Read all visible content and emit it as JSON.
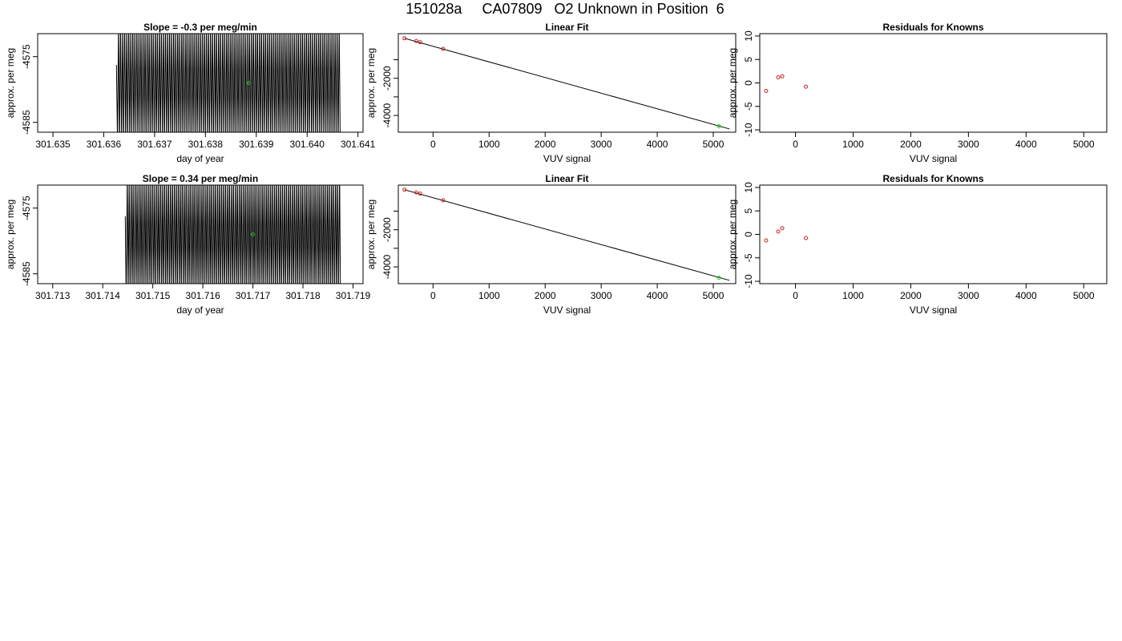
{
  "page_title": "151028a     CA07809   O2 Unknown in Position  6",
  "colors": {
    "knowns": "#cc2222",
    "unknown": "#22cc22",
    "line": "#000000"
  },
  "chart_data": [
    {
      "id": "timeseries-1",
      "type": "line",
      "title": "Slope =  -0.3  per meg/min",
      "xlabel": "day of year",
      "ylabel": "approx. per meg",
      "xlim": [
        301.6347,
        301.6411
      ],
      "ylim": [
        -4586.5,
        -4571.5
      ],
      "xticks": [
        "301.635",
        "301.636",
        "301.637",
        "301.638",
        "301.639",
        "301.640",
        "301.641"
      ],
      "xtick_values": [
        301.635,
        301.636,
        301.637,
        301.638,
        301.639,
        301.64,
        301.641
      ],
      "yticks": [
        "-4575",
        "-4585"
      ],
      "ytick_values": [
        -4575,
        -4585
      ],
      "series": [
        {
          "x_start": 301.63625,
          "x_end": 301.64065,
          "count": 220,
          "center": -4579.1,
          "amplitude": 9.5
        }
      ],
      "unknown_point": {
        "x": 301.63885,
        "y": -4579.0
      }
    },
    {
      "id": "linear-fit-1",
      "type": "scatter",
      "title": "Linear Fit",
      "xlabel": "VUV signal",
      "ylabel": "approx. per meg",
      "xlim": [
        -620,
        5400
      ],
      "ylim": [
        -4900,
        400
      ],
      "xticks": [
        "0",
        "1000",
        "2000",
        "3000",
        "4000",
        "5000"
      ],
      "xtick_values": [
        0,
        1000,
        2000,
        3000,
        4000,
        5000
      ],
      "yticks": [
        "-2000",
        "-4000"
      ],
      "yticks_shown_values": [
        -2000,
        -4000
      ],
      "yminor_ticks": [
        -1000,
        -3000
      ],
      "fit_line": {
        "x": [
          -510,
          5290
        ],
        "y": [
          150,
          -4725
        ]
      },
      "knowns": [
        {
          "x": -510,
          "y": 150
        },
        {
          "x": -300,
          "y": 0
        },
        {
          "x": -230,
          "y": -60
        },
        {
          "x": 180,
          "y": -420
        }
      ],
      "unknown": {
        "x": 5100,
        "y": -4580
      }
    },
    {
      "id": "residuals-1",
      "type": "scatter",
      "title": "Residuals for Knowns",
      "xlabel": "VUV signal",
      "ylabel": "approx. per meg",
      "xlim": [
        -620,
        5400
      ],
      "ylim": [
        -10.5,
        10.5
      ],
      "xticks": [
        "0",
        "1000",
        "2000",
        "3000",
        "4000",
        "5000"
      ],
      "xtick_values": [
        0,
        1000,
        2000,
        3000,
        4000,
        5000
      ],
      "yticks": [
        "10",
        "5",
        "0",
        "-5",
        "-10"
      ],
      "ytick_values": [
        10,
        5,
        0,
        -5,
        -10
      ],
      "points": [
        {
          "x": -510,
          "y": -1.7
        },
        {
          "x": -300,
          "y": 1.2
        },
        {
          "x": -230,
          "y": 1.4
        },
        {
          "x": 180,
          "y": -0.8
        }
      ]
    },
    {
      "id": "timeseries-2",
      "type": "line",
      "title": "Slope =  0.34  per meg/min",
      "xlabel": "day of year",
      "ylabel": "approx. per meg",
      "xlim": [
        301.7127,
        301.7192
      ],
      "ylim": [
        -4586.5,
        -4571.5
      ],
      "xticks": [
        "301.713",
        "301.714",
        "301.715",
        "301.716",
        "301.717",
        "301.718",
        "301.719"
      ],
      "xtick_values": [
        301.713,
        301.714,
        301.715,
        301.716,
        301.717,
        301.718,
        301.719
      ],
      "yticks": [
        "-4575",
        "-4585"
      ],
      "ytick_values": [
        -4575,
        -4585
      ],
      "series": [
        {
          "x_start": 301.71445,
          "x_end": 301.71875,
          "count": 220,
          "center": -4579.2,
          "amplitude": 9.5
        }
      ],
      "unknown_point": {
        "x": 301.717,
        "y": -4579.0
      }
    },
    {
      "id": "linear-fit-2",
      "type": "scatter",
      "title": "Linear Fit",
      "xlabel": "VUV signal",
      "ylabel": "approx. per meg",
      "xlim": [
        -620,
        5400
      ],
      "ylim": [
        -4900,
        400
      ],
      "xticks": [
        "0",
        "1000",
        "2000",
        "3000",
        "4000",
        "5000"
      ],
      "xtick_values": [
        0,
        1000,
        2000,
        3000,
        4000,
        5000
      ],
      "yticks": [
        "-2000",
        "-4000"
      ],
      "yticks_shown_values": [
        -2000,
        -4000
      ],
      "yminor_ticks": [
        -1000,
        -3000
      ],
      "fit_line": {
        "x": [
          -510,
          5290
        ],
        "y": [
          150,
          -4725
        ]
      },
      "knowns": [
        {
          "x": -510,
          "y": 150
        },
        {
          "x": -300,
          "y": 0
        },
        {
          "x": -230,
          "y": -60
        },
        {
          "x": 180,
          "y": -420
        }
      ],
      "unknown": {
        "x": 5100,
        "y": -4580
      }
    },
    {
      "id": "residuals-2",
      "type": "scatter",
      "title": "Residuals for Knowns",
      "xlabel": "VUV signal",
      "ylabel": "approx. per meg",
      "xlim": [
        -620,
        5400
      ],
      "ylim": [
        -10.5,
        10.5
      ],
      "xticks": [
        "0",
        "1000",
        "2000",
        "3000",
        "4000",
        "5000"
      ],
      "xtick_values": [
        0,
        1000,
        2000,
        3000,
        4000,
        5000
      ],
      "yticks": [
        "10",
        "5",
        "0",
        "-5",
        "-10"
      ],
      "ytick_values": [
        10,
        5,
        0,
        -5,
        -10
      ],
      "points": [
        {
          "x": -510,
          "y": -1.3
        },
        {
          "x": -300,
          "y": 0.6
        },
        {
          "x": -230,
          "y": 1.3
        },
        {
          "x": 180,
          "y": -0.8
        }
      ]
    }
  ]
}
